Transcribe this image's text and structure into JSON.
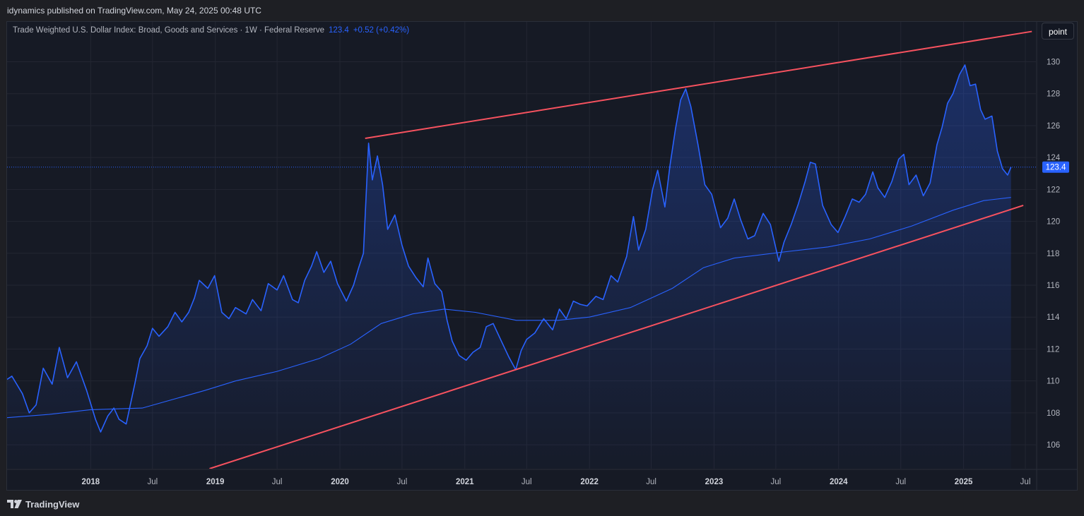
{
  "header": {
    "publisher_line": "idynamics published on TradingView.com, May 24, 2025 00:48 UTC"
  },
  "legend": {
    "title": "Trade Weighted U.S. Dollar Index: Broad, Goods and Services · 1W · Federal Reserve",
    "value": "123.4",
    "change": "+0.52 (+0.42%)"
  },
  "toolbar": {
    "scale_label": "point"
  },
  "footer": {
    "brand": "TradingView"
  },
  "colors": {
    "series": "#2962ff",
    "ma": "#2962ff",
    "trendline": "#f7525f",
    "price_tag_bg": "#2962ff",
    "background": "#161a25",
    "grid": "#232632"
  },
  "chart_data": {
    "type": "area",
    "title": "Trade Weighted U.S. Dollar Index: Broad, Goods and Services",
    "interval": "1W",
    "source": "Federal Reserve",
    "ylim": [
      104.5,
      132.5
    ],
    "xlim": [
      "2017-05-01",
      "2025-08-01"
    ],
    "y_ticks": [
      106,
      108,
      110,
      112,
      114,
      116,
      118,
      120,
      122,
      124,
      126,
      128,
      130
    ],
    "x_ticks": [
      {
        "date": "2018-01-01",
        "label": "2018",
        "year": true
      },
      {
        "date": "2018-07-01",
        "label": "Jul",
        "year": false
      },
      {
        "date": "2019-01-01",
        "label": "2019",
        "year": true
      },
      {
        "date": "2019-07-01",
        "label": "Jul",
        "year": false
      },
      {
        "date": "2020-01-01",
        "label": "2020",
        "year": true
      },
      {
        "date": "2020-07-01",
        "label": "Jul",
        "year": false
      },
      {
        "date": "2021-01-01",
        "label": "2021",
        "year": true
      },
      {
        "date": "2021-07-01",
        "label": "Jul",
        "year": false
      },
      {
        "date": "2022-01-01",
        "label": "2022",
        "year": true
      },
      {
        "date": "2022-07-01",
        "label": "Jul",
        "year": false
      },
      {
        "date": "2023-01-01",
        "label": "2023",
        "year": true
      },
      {
        "date": "2023-07-01",
        "label": "Jul",
        "year": false
      },
      {
        "date": "2024-01-01",
        "label": "2024",
        "year": true
      },
      {
        "date": "2024-07-01",
        "label": "Jul",
        "year": false
      },
      {
        "date": "2025-01-01",
        "label": "2025",
        "year": true
      },
      {
        "date": "2025-07-01",
        "label": "Jul",
        "year": false
      }
    ],
    "last_value": 123.4,
    "series": [
      {
        "name": "Trade Weighted U.S. Dollar Index: Broad, Goods and Services",
        "points": [
          [
            "2017-05-01",
            110.1
          ],
          [
            "2017-05-15",
            110.3
          ],
          [
            "2017-06-15",
            109.2
          ],
          [
            "2017-07-05",
            108.0
          ],
          [
            "2017-07-25",
            108.5
          ],
          [
            "2017-08-15",
            110.8
          ],
          [
            "2017-09-10",
            109.8
          ],
          [
            "2017-10-01",
            112.1
          ],
          [
            "2017-10-25",
            110.2
          ],
          [
            "2017-11-20",
            111.2
          ],
          [
            "2017-12-20",
            109.4
          ],
          [
            "2018-01-15",
            107.6
          ],
          [
            "2018-01-30",
            106.8
          ],
          [
            "2018-02-20",
            107.8
          ],
          [
            "2018-03-10",
            108.3
          ],
          [
            "2018-03-25",
            107.6
          ],
          [
            "2018-04-15",
            107.3
          ],
          [
            "2018-05-10",
            109.8
          ],
          [
            "2018-05-25",
            111.4
          ],
          [
            "2018-06-15",
            112.2
          ],
          [
            "2018-07-01",
            113.3
          ],
          [
            "2018-07-20",
            112.8
          ],
          [
            "2018-08-15",
            113.4
          ],
          [
            "2018-09-05",
            114.3
          ],
          [
            "2018-09-25",
            113.7
          ],
          [
            "2018-10-15",
            114.3
          ],
          [
            "2018-11-01",
            115.2
          ],
          [
            "2018-11-15",
            116.3
          ],
          [
            "2018-12-10",
            115.8
          ],
          [
            "2018-12-30",
            116.6
          ],
          [
            "2019-01-20",
            114.3
          ],
          [
            "2019-02-10",
            113.9
          ],
          [
            "2019-03-01",
            114.6
          ],
          [
            "2019-04-01",
            114.2
          ],
          [
            "2019-04-20",
            115.1
          ],
          [
            "2019-05-15",
            114.4
          ],
          [
            "2019-06-05",
            116.1
          ],
          [
            "2019-07-01",
            115.7
          ],
          [
            "2019-07-20",
            116.6
          ],
          [
            "2019-08-15",
            115.1
          ],
          [
            "2019-09-01",
            114.9
          ],
          [
            "2019-09-20",
            116.3
          ],
          [
            "2019-10-10",
            117.2
          ],
          [
            "2019-10-25",
            118.1
          ],
          [
            "2019-11-15",
            116.8
          ],
          [
            "2019-12-05",
            117.5
          ],
          [
            "2019-12-25",
            116.1
          ],
          [
            "2020-01-20",
            115.0
          ],
          [
            "2020-02-10",
            116.0
          ],
          [
            "2020-02-25",
            117.1
          ],
          [
            "2020-03-10",
            118.0
          ],
          [
            "2020-03-25",
            124.9
          ],
          [
            "2020-04-05",
            122.6
          ],
          [
            "2020-04-20",
            124.1
          ],
          [
            "2020-05-05",
            122.3
          ],
          [
            "2020-05-20",
            119.5
          ],
          [
            "2020-06-10",
            120.4
          ],
          [
            "2020-07-01",
            118.5
          ],
          [
            "2020-07-20",
            117.2
          ],
          [
            "2020-08-10",
            116.5
          ],
          [
            "2020-09-01",
            115.9
          ],
          [
            "2020-09-15",
            117.7
          ],
          [
            "2020-10-05",
            116.1
          ],
          [
            "2020-10-25",
            115.6
          ],
          [
            "2020-11-10",
            113.8
          ],
          [
            "2020-11-25",
            112.5
          ],
          [
            "2020-12-15",
            111.6
          ],
          [
            "2021-01-05",
            111.3
          ],
          [
            "2021-01-25",
            111.8
          ],
          [
            "2021-02-15",
            112.1
          ],
          [
            "2021-03-05",
            113.4
          ],
          [
            "2021-03-25",
            113.6
          ],
          [
            "2021-04-20",
            112.4
          ],
          [
            "2021-05-10",
            111.5
          ],
          [
            "2021-05-30",
            110.7
          ],
          [
            "2021-06-15",
            111.9
          ],
          [
            "2021-07-01",
            112.6
          ],
          [
            "2021-07-25",
            113.0
          ],
          [
            "2021-08-20",
            113.9
          ],
          [
            "2021-09-15",
            113.2
          ],
          [
            "2021-10-05",
            114.5
          ],
          [
            "2021-10-25",
            113.9
          ],
          [
            "2021-11-15",
            115.0
          ],
          [
            "2021-12-05",
            114.8
          ],
          [
            "2021-12-25",
            114.7
          ],
          [
            "2022-01-20",
            115.3
          ],
          [
            "2022-02-10",
            115.1
          ],
          [
            "2022-03-05",
            116.6
          ],
          [
            "2022-03-25",
            116.2
          ],
          [
            "2022-04-20",
            117.8
          ],
          [
            "2022-05-10",
            120.3
          ],
          [
            "2022-05-25",
            118.2
          ],
          [
            "2022-06-15",
            119.5
          ],
          [
            "2022-07-05",
            122.0
          ],
          [
            "2022-07-20",
            123.2
          ],
          [
            "2022-08-10",
            120.9
          ],
          [
            "2022-08-25",
            123.5
          ],
          [
            "2022-09-10",
            125.8
          ],
          [
            "2022-09-25",
            127.6
          ],
          [
            "2022-10-10",
            128.3
          ],
          [
            "2022-10-25",
            127.2
          ],
          [
            "2022-11-15",
            124.8
          ],
          [
            "2022-12-05",
            122.3
          ],
          [
            "2022-12-25",
            121.7
          ],
          [
            "2023-01-20",
            119.6
          ],
          [
            "2023-02-10",
            120.2
          ],
          [
            "2023-03-01",
            121.4
          ],
          [
            "2023-03-20",
            120.1
          ],
          [
            "2023-04-10",
            118.9
          ],
          [
            "2023-04-30",
            119.1
          ],
          [
            "2023-05-25",
            120.5
          ],
          [
            "2023-06-15",
            119.8
          ],
          [
            "2023-07-10",
            117.5
          ],
          [
            "2023-07-25",
            118.7
          ],
          [
            "2023-08-15",
            119.8
          ],
          [
            "2023-09-05",
            121.1
          ],
          [
            "2023-09-25",
            122.5
          ],
          [
            "2023-10-10",
            123.7
          ],
          [
            "2023-10-25",
            123.6
          ],
          [
            "2023-11-15",
            121.0
          ],
          [
            "2023-12-10",
            119.8
          ],
          [
            "2023-12-30",
            119.3
          ],
          [
            "2024-01-20",
            120.3
          ],
          [
            "2024-02-10",
            121.4
          ],
          [
            "2024-03-01",
            121.2
          ],
          [
            "2024-03-20",
            121.7
          ],
          [
            "2024-04-10",
            123.1
          ],
          [
            "2024-04-25",
            122.1
          ],
          [
            "2024-05-15",
            121.5
          ],
          [
            "2024-06-05",
            122.5
          ],
          [
            "2024-06-25",
            123.9
          ],
          [
            "2024-07-10",
            124.2
          ],
          [
            "2024-07-25",
            122.3
          ],
          [
            "2024-08-15",
            122.9
          ],
          [
            "2024-09-05",
            121.6
          ],
          [
            "2024-09-25",
            122.4
          ],
          [
            "2024-10-15",
            124.8
          ],
          [
            "2024-10-30",
            125.9
          ],
          [
            "2024-11-15",
            127.4
          ],
          [
            "2024-12-01",
            128.0
          ],
          [
            "2024-12-20",
            129.2
          ],
          [
            "2025-01-05",
            129.8
          ],
          [
            "2025-01-20",
            128.5
          ],
          [
            "2025-02-05",
            128.6
          ],
          [
            "2025-02-20",
            127.0
          ],
          [
            "2025-03-05",
            126.4
          ],
          [
            "2025-03-25",
            126.6
          ],
          [
            "2025-04-10",
            124.4
          ],
          [
            "2025-04-25",
            123.3
          ],
          [
            "2025-05-10",
            122.9
          ],
          [
            "2025-05-20",
            123.4
          ]
        ]
      },
      {
        "points": [
          [
            "2017-05-01",
            107.7
          ],
          [
            "2017-09-01",
            107.9
          ],
          [
            "2018-01-01",
            108.2
          ],
          [
            "2018-06-01",
            108.3
          ],
          [
            "2018-12-01",
            109.4
          ],
          [
            "2019-03-01",
            110.0
          ],
          [
            "2019-07-01",
            110.6
          ],
          [
            "2019-11-01",
            111.4
          ],
          [
            "2020-02-01",
            112.3
          ],
          [
            "2020-05-01",
            113.6
          ],
          [
            "2020-08-01",
            114.2
          ],
          [
            "2020-11-01",
            114.5
          ],
          [
            "2021-02-01",
            114.3
          ],
          [
            "2021-06-01",
            113.8
          ],
          [
            "2021-10-01",
            113.8
          ],
          [
            "2022-01-01",
            114.0
          ],
          [
            "2022-05-01",
            114.6
          ],
          [
            "2022-09-01",
            115.8
          ],
          [
            "2022-12-01",
            117.1
          ],
          [
            "2023-03-01",
            117.7
          ],
          [
            "2023-08-01",
            118.1
          ],
          [
            "2023-12-01",
            118.4
          ],
          [
            "2024-04-01",
            118.9
          ],
          [
            "2024-08-01",
            119.7
          ],
          [
            "2024-12-01",
            120.7
          ],
          [
            "2025-03-01",
            121.3
          ],
          [
            "2025-05-20",
            121.5
          ]
        ]
      }
    ],
    "trendlines": [
      {
        "from": [
          "2020-03-15",
          125.2
        ],
        "to": [
          "2025-07-20",
          131.9
        ]
      },
      {
        "from": [
          "2018-12-15",
          104.5
        ],
        "to": [
          "2025-06-25",
          121.0
        ]
      }
    ]
  }
}
